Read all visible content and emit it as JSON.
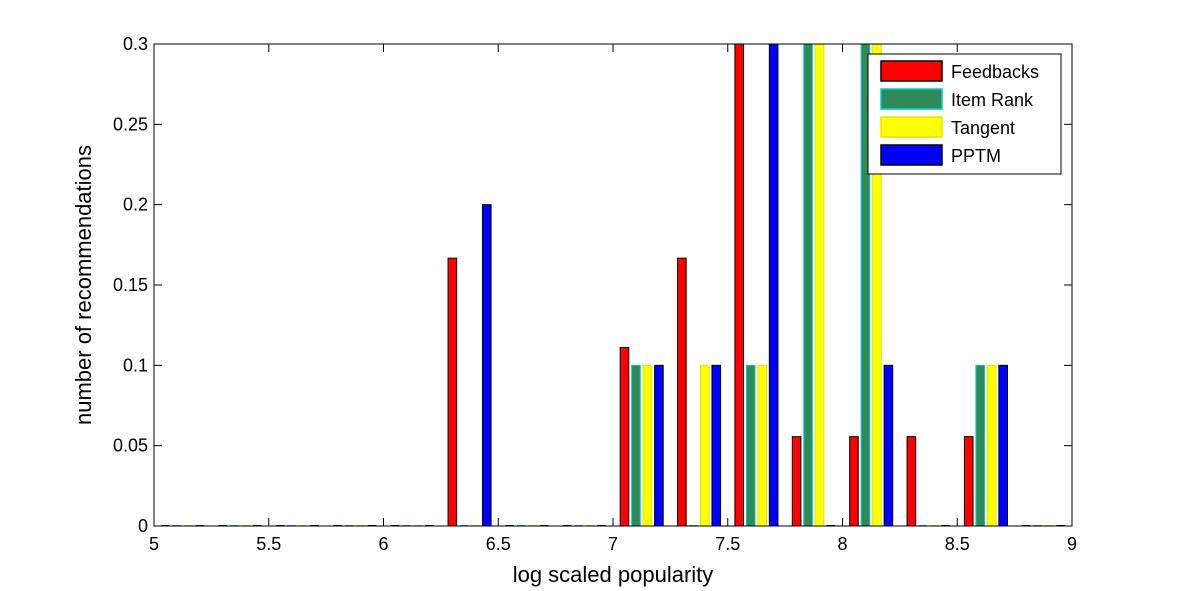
{
  "chart_data": {
    "type": "bar",
    "title": "",
    "xlabel": "log scaled popularity",
    "ylabel": "number of recommendations",
    "xlim": [
      5,
      9
    ],
    "ylim": [
      0,
      0.3
    ],
    "x_ticks": [
      "5",
      "5.5",
      "6",
      "6.5",
      "7",
      "7.5",
      "8",
      "8.5",
      "9"
    ],
    "y_ticks": [
      "0",
      "0.05",
      "0.1",
      "0.15",
      "0.2",
      "0.25",
      "0.3"
    ],
    "bin_width": 0.25,
    "grid": false,
    "legend_position": "top-right",
    "categories": [
      5.125,
      5.375,
      5.625,
      5.875,
      6.125,
      6.375,
      6.625,
      6.875,
      7.125,
      7.375,
      7.625,
      7.875,
      8.125,
      8.375,
      8.625,
      8.875
    ],
    "series": [
      {
        "name": "Feedbacks",
        "color": "#ff0000",
        "edge": "#000000",
        "values": [
          0,
          0,
          0,
          0,
          0,
          0.1667,
          0,
          0,
          0.1111,
          0.1667,
          0.3,
          0.0556,
          0.0556,
          0.0556,
          0.0556,
          0
        ]
      },
      {
        "name": "Item Rank",
        "color": "#2e8b57",
        "edge": "#00cccc",
        "values": [
          0,
          0,
          0,
          0,
          0,
          0,
          0,
          0,
          0.1,
          0,
          0.1,
          0.3,
          0.3,
          0,
          0.1,
          0
        ]
      },
      {
        "name": "Tangent",
        "color": "#ffff00",
        "edge": "#e6e600",
        "values": [
          0,
          0,
          0,
          0,
          0,
          0,
          0,
          0,
          0.1,
          0.1,
          0.1,
          0.3,
          0.3,
          0,
          0.1,
          0
        ]
      },
      {
        "name": "PPTM",
        "color": "#0000ff",
        "edge": "#000000",
        "values": [
          0,
          0,
          0,
          0,
          0,
          0.2,
          0,
          0,
          0.1,
          0.1,
          0.3,
          0,
          0.1,
          0,
          0.1,
          0
        ]
      }
    ]
  }
}
